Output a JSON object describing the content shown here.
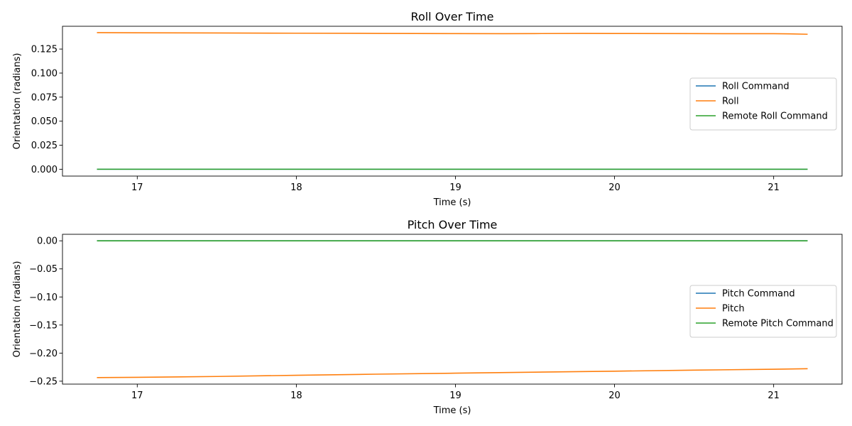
{
  "chart_data": [
    {
      "type": "line",
      "title": "Roll Over Time",
      "xlabel": "Time (s)",
      "ylabel": "Orientation (radians)",
      "xlim": [
        16.53,
        21.43
      ],
      "ylim": [
        -0.0071,
        0.1487
      ],
      "xticks": [
        17,
        18,
        19,
        20,
        21
      ],
      "xtick_labels": [
        "17",
        "18",
        "19",
        "20",
        "21"
      ],
      "yticks": [
        0.0,
        0.025,
        0.05,
        0.075,
        0.1,
        0.125
      ],
      "ytick_labels": [
        "0.000",
        "0.025",
        "0.050",
        "0.075",
        "0.100",
        "0.125"
      ],
      "legend_position": "center-right",
      "series": [
        {
          "name": "Roll Command",
          "color": "#1f77b4",
          "x": [
            16.75,
            21.21
          ],
          "y": [
            0.0,
            0.0
          ]
        },
        {
          "name": "Roll",
          "color": "#ff7f0e",
          "x": [
            16.75,
            17.0,
            17.5,
            18.0,
            18.5,
            19.0,
            19.3,
            19.5,
            19.8,
            20.0,
            20.5,
            20.7,
            21.0,
            21.1,
            21.21
          ],
          "y": [
            0.1421,
            0.1419,
            0.1417,
            0.1415,
            0.1413,
            0.1411,
            0.141,
            0.1411,
            0.1413,
            0.1412,
            0.1411,
            0.141,
            0.141,
            0.1408,
            0.1404
          ]
        },
        {
          "name": "Remote Roll Command",
          "color": "#2ca02c",
          "x": [
            16.75,
            21.21
          ],
          "y": [
            0.0,
            0.0
          ]
        }
      ]
    },
    {
      "type": "line",
      "title": "Pitch Over Time",
      "xlabel": "Time (s)",
      "ylabel": "Orientation (radians)",
      "xlim": [
        16.53,
        21.43
      ],
      "ylim": [
        -0.2552,
        0.0116
      ],
      "xticks": [
        17,
        18,
        19,
        20,
        21
      ],
      "xtick_labels": [
        "17",
        "18",
        "19",
        "20",
        "21"
      ],
      "yticks": [
        0.0,
        -0.05,
        -0.1,
        -0.15,
        -0.2,
        -0.25
      ],
      "ytick_labels": [
        "0.00",
        "−0.05",
        "−0.10",
        "−0.15",
        "−0.20",
        "−0.25"
      ],
      "legend_position": "center-right",
      "series": [
        {
          "name": "Pitch Command",
          "color": "#1f77b4",
          "x": [
            16.75,
            21.21
          ],
          "y": [
            0.0,
            0.0
          ]
        },
        {
          "name": "Pitch",
          "color": "#ff7f0e",
          "x": [
            16.75,
            17.0,
            17.5,
            18.0,
            18.5,
            19.0,
            19.5,
            20.0,
            20.5,
            21.0,
            21.21
          ],
          "y": [
            -0.2436,
            -0.2431,
            -0.2416,
            -0.2395,
            -0.2375,
            -0.2357,
            -0.2339,
            -0.2322,
            -0.2303,
            -0.2287,
            -0.2278
          ]
        },
        {
          "name": "Remote Pitch Command",
          "color": "#2ca02c",
          "x": [
            16.75,
            21.21
          ],
          "y": [
            0.0,
            0.0
          ]
        }
      ]
    }
  ]
}
